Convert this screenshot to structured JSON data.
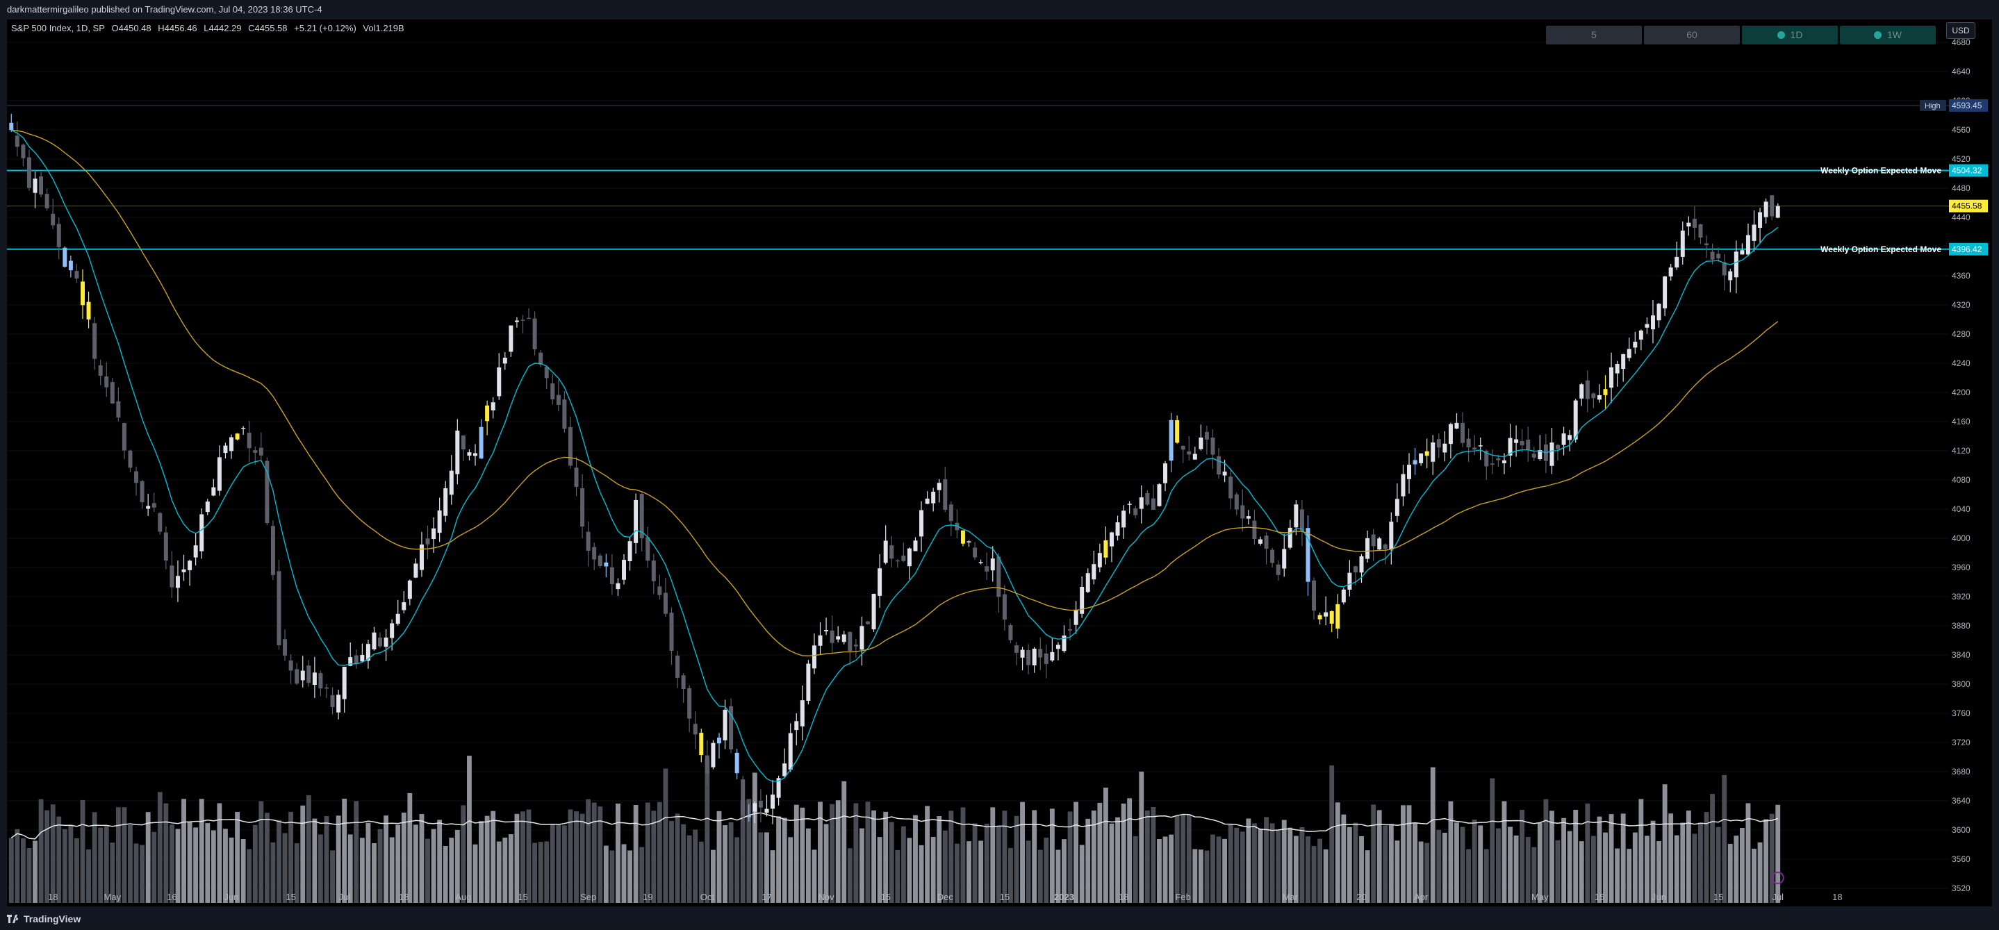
{
  "header": {
    "publisher": "darkmattermirgalileo published on TradingView.com, Jul 04, 2023 18:36 UTC-4"
  },
  "legend": {
    "symbol": "S&P 500 Index, 1D, SP",
    "open": "O4450.48",
    "high": "H4456.46",
    "low": "L4442.29",
    "close": "C4455.58",
    "change": "+5.21 (+0.12%)",
    "volume": "Vol1.219B"
  },
  "timeframes": [
    {
      "label": "5",
      "active": false
    },
    {
      "label": "60",
      "active": false
    },
    {
      "label": "1D",
      "active": true
    },
    {
      "label": "1W",
      "active": true
    }
  ],
  "currency": "USD",
  "footer": {
    "brand": "TradingView"
  },
  "colors": {
    "up": "#e0e3eb",
    "down": "#5d606b",
    "blue": "#90bff9",
    "yellow": "#ffeb3b",
    "ema_fast": "#00bcd4",
    "ema_slow": "#c9a227",
    "cyan": "#00bcd4",
    "high_label": "#1e3a6e"
  },
  "chart_data": {
    "type": "candlestick",
    "title": "",
    "y_axis": {
      "min": 3500,
      "max": 4700,
      "ticks": [
        4680,
        4640,
        4600,
        4560,
        4520,
        4480,
        4440,
        4400,
        4360,
        4320,
        4280,
        4240,
        4200,
        4160,
        4120,
        4080,
        4040,
        4000,
        3960,
        3920,
        3880,
        3840,
        3800,
        3760,
        3720,
        3680,
        3640,
        3600,
        3560,
        3520
      ]
    },
    "x_axis": {
      "ticks": [
        {
          "label": "18",
          "i": 7
        },
        {
          "label": "May",
          "i": 17
        },
        {
          "label": "16",
          "i": 27
        },
        {
          "label": "Jun",
          "i": 37
        },
        {
          "label": "15",
          "i": 47
        },
        {
          "label": "Jul",
          "i": 56
        },
        {
          "label": "18",
          "i": 66
        },
        {
          "label": "Aug",
          "i": 76
        },
        {
          "label": "15",
          "i": 86
        },
        {
          "label": "Sep",
          "i": 97
        },
        {
          "label": "19",
          "i": 107
        },
        {
          "label": "Oct",
          "i": 117
        },
        {
          "label": "17",
          "i": 127
        },
        {
          "label": "Nov",
          "i": 137
        },
        {
          "label": "15",
          "i": 147
        },
        {
          "label": "Dec",
          "i": 157
        },
        {
          "label": "15",
          "i": 167
        },
        {
          "label": "2023",
          "i": 177
        },
        {
          "label": "18",
          "i": 187
        },
        {
          "label": "Feb",
          "i": 197
        },
        {
          "label": "Mar",
          "i": 215
        },
        {
          "label": "20",
          "i": 227
        },
        {
          "label": "Apr",
          "i": 237
        },
        {
          "label": "May",
          "i": 257
        },
        {
          "label": "15",
          "i": 267
        },
        {
          "label": "Jun",
          "i": 277
        },
        {
          "label": "15",
          "i": 287
        },
        {
          "label": "Jul",
          "i": 297
        },
        {
          "label": "18",
          "i": 307
        }
      ]
    },
    "horizontal_levels": [
      {
        "label": "High",
        "value": 4593.45,
        "price": "4593.45",
        "style": "high"
      },
      {
        "label": "Weekly Option Expected Move",
        "value": 4504.32,
        "price": "4504.32",
        "style": "cyan"
      },
      {
        "label": "",
        "value": 4455.58,
        "price": "4455.58",
        "style": "last"
      },
      {
        "label": "Weekly Option Expected Move",
        "value": 4396.42,
        "price": "4396.42",
        "style": "cyan"
      }
    ],
    "close_anchors": [
      [
        0,
        4560
      ],
      [
        3,
        4490
      ],
      [
        6,
        4460
      ],
      [
        9,
        4380
      ],
      [
        12,
        4330
      ],
      [
        15,
        4210
      ],
      [
        18,
        4160
      ],
      [
        21,
        4080
      ],
      [
        24,
        4030
      ],
      [
        27,
        3935
      ],
      [
        30,
        3960
      ],
      [
        33,
        4060
      ],
      [
        36,
        4130
      ],
      [
        39,
        4150
      ],
      [
        42,
        4110
      ],
      [
        45,
        3850
      ],
      [
        48,
        3800
      ],
      [
        51,
        3820
      ],
      [
        54,
        3780
      ],
      [
        57,
        3830
      ],
      [
        60,
        3860
      ],
      [
        63,
        3855
      ],
      [
        66,
        3920
      ],
      [
        69,
        3990
      ],
      [
        72,
        4030
      ],
      [
        75,
        4135
      ],
      [
        78,
        4130
      ],
      [
        81,
        4200
      ],
      [
        84,
        4280
      ],
      [
        87,
        4295
      ],
      [
        90,
        4220
      ],
      [
        93,
        4160
      ],
      [
        96,
        4010
      ],
      [
        99,
        3970
      ],
      [
        102,
        3935
      ],
      [
        105,
        4040
      ],
      [
        108,
        3950
      ],
      [
        111,
        3850
      ],
      [
        114,
        3755
      ],
      [
        117,
        3680
      ],
      [
        120,
        3770
      ],
      [
        123,
        3630
      ],
      [
        126,
        3620
      ],
      [
        129,
        3670
      ],
      [
        132,
        3760
      ],
      [
        135,
        3850
      ],
      [
        138,
        3870
      ],
      [
        141,
        3850
      ],
      [
        144,
        3880
      ],
      [
        147,
        3990
      ],
      [
        150,
        3960
      ],
      [
        153,
        4030
      ],
      [
        156,
        4070
      ],
      [
        159,
        4010
      ],
      [
        162,
        3980
      ],
      [
        165,
        3960
      ],
      [
        168,
        3860
      ],
      [
        171,
        3840
      ],
      [
        174,
        3830
      ],
      [
        177,
        3860
      ],
      [
        180,
        3920
      ],
      [
        183,
        3990
      ],
      [
        186,
        4030
      ],
      [
        189,
        4040
      ],
      [
        192,
        4050
      ],
      [
        195,
        4150
      ],
      [
        198,
        4110
      ],
      [
        201,
        4140
      ],
      [
        204,
        4080
      ],
      [
        207,
        4030
      ],
      [
        210,
        3990
      ],
      [
        213,
        3960
      ],
      [
        216,
        4050
      ],
      [
        219,
        3900
      ],
      [
        222,
        3880
      ],
      [
        225,
        3950
      ],
      [
        228,
        4000
      ],
      [
        231,
        3990
      ],
      [
        234,
        4100
      ],
      [
        237,
        4110
      ],
      [
        240,
        4130
      ],
      [
        243,
        4150
      ],
      [
        246,
        4130
      ],
      [
        249,
        4100
      ],
      [
        252,
        4130
      ],
      [
        255,
        4110
      ],
      [
        258,
        4120
      ],
      [
        261,
        4130
      ],
      [
        264,
        4200
      ],
      [
        267,
        4190
      ],
      [
        270,
        4240
      ],
      [
        273,
        4280
      ],
      [
        276,
        4300
      ],
      [
        279,
        4380
      ],
      [
        282,
        4430
      ],
      [
        285,
        4390
      ],
      [
        288,
        4370
      ],
      [
        291,
        4400
      ],
      [
        294,
        4450
      ],
      [
        297,
        4455.58
      ]
    ],
    "count": 298,
    "ema_fast_period": 10,
    "ema_slow_period": 50
  }
}
